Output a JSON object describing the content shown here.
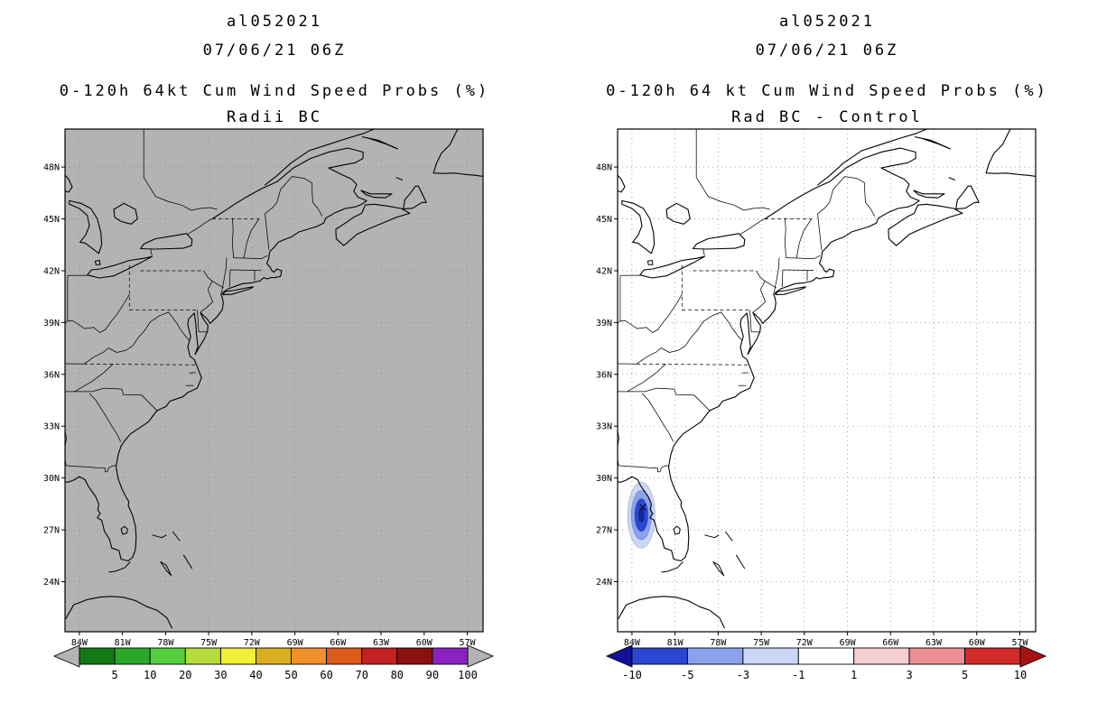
{
  "panels": [
    {
      "id": "radii-bc",
      "storm_id": "al052021",
      "init_time": "07/06/21 06Z",
      "product_title": "0-120h 64kt Cum Wind Speed Probs (%)",
      "variant": "Radii BC",
      "map": {
        "bg": "#b3b3b3",
        "lat_ticks": [
          "48N",
          "45N",
          "42N",
          "39N",
          "36N",
          "33N",
          "30N",
          "27N",
          "24N"
        ],
        "lon_ticks": [
          "84W",
          "81W",
          "78W",
          "75W",
          "72W",
          "69W",
          "66W",
          "63W",
          "60W",
          "57W"
        ]
      },
      "colorbar": {
        "labels": [
          "5",
          "10",
          "20",
          "30",
          "40",
          "50",
          "60",
          "70",
          "80",
          "90",
          "100"
        ],
        "segment_colors": [
          "#137a13",
          "#2ba82b",
          "#56cf3e",
          "#b8dc3c",
          "#f2ee3a",
          "#d9ae1f",
          "#f0912c",
          "#dd5a1c",
          "#c42020",
          "#8c1010",
          "#8a22c2"
        ],
        "left_arrow_color": "#b3b3b3",
        "right_arrow_color": "#b3b3b3"
      }
    },
    {
      "id": "rad-bc-minus-control",
      "storm_id": "al052021",
      "init_time": "07/06/21 06Z",
      "product_title": "0-120h 64 kt Cum Wind Speed Probs (%)",
      "variant": "Rad BC - Control",
      "map": {
        "bg": "#ffffff",
        "lat_ticks": [
          "48N",
          "45N",
          "42N",
          "39N",
          "36N",
          "33N",
          "30N",
          "27N",
          "24N"
        ],
        "lon_ticks": [
          "84W",
          "81W",
          "78W",
          "75W",
          "72W",
          "69W",
          "66W",
          "63W",
          "60W",
          "57W"
        ],
        "anomaly": {
          "center_lon": -83.35,
          "center_lat": 27.85,
          "marker_lon": -83.25,
          "marker_lat": 28.3,
          "rings": [
            {
              "level": -1,
              "color": "#ccd6f6",
              "rx_deg": 0.95,
              "ry_deg": 1.9
            },
            {
              "level": -3,
              "color": "#8aa2ec",
              "rx_deg": 0.7,
              "ry_deg": 1.42
            },
            {
              "level": -5,
              "color": "#2a46d4",
              "rx_deg": 0.46,
              "ry_deg": 0.95
            },
            {
              "level": -10,
              "color": "#18279b",
              "rx_deg": 0.2,
              "ry_deg": 0.42
            }
          ]
        }
      },
      "colorbar": {
        "labels": [
          "-10",
          "-5",
          "-3",
          "-1",
          "1",
          "3",
          "5",
          "10"
        ],
        "segment_colors": [
          "#2a46d4",
          "#8aa2ec",
          "#ccd6f6",
          "#ffffff",
          "#f6ced2",
          "#ee8f96",
          "#d42a2a"
        ],
        "left_arrow_color": "#12129b",
        "right_arrow_color": "#a51212"
      }
    }
  ],
  "chart_data": [
    {
      "type": "heatmap",
      "map_type": "geographic wind-speed probability map",
      "storm_id": "al052021",
      "initialization": "07/06/21 06Z",
      "title": "0-120h 64kt Cum Wind Speed Probs (%)",
      "variant": "Radii BC",
      "lat_range": [
        "24N",
        "48N"
      ],
      "lon_range": [
        "84W",
        "57W"
      ],
      "probability_levels_percent": [
        5,
        10,
        20,
        30,
        40,
        50,
        60,
        70,
        80,
        90,
        100
      ],
      "visible_shading": "none - no 64kt cumulative probability contours of 5% or greater appear in the displayed domain"
    },
    {
      "type": "heatmap",
      "map_type": "geographic probability difference map",
      "storm_id": "al052021",
      "initialization": "07/06/21 06Z",
      "title": "0-120h 64 kt Cum Wind Speed Probs (%)",
      "variant": "Rad BC - Control",
      "lat_range": [
        "24N",
        "48N"
      ],
      "lon_range": [
        "84W",
        "57W"
      ],
      "difference_levels_percent": [
        -10,
        -5,
        -3,
        -1,
        1,
        3,
        5,
        10
      ],
      "visible_shading": "negative difference region centered near 83.3W 27.9N (eastern Gulf of Mexico, just west of the Florida peninsula) with nested contours reaching the -5 to -10 band at the core"
    }
  ]
}
